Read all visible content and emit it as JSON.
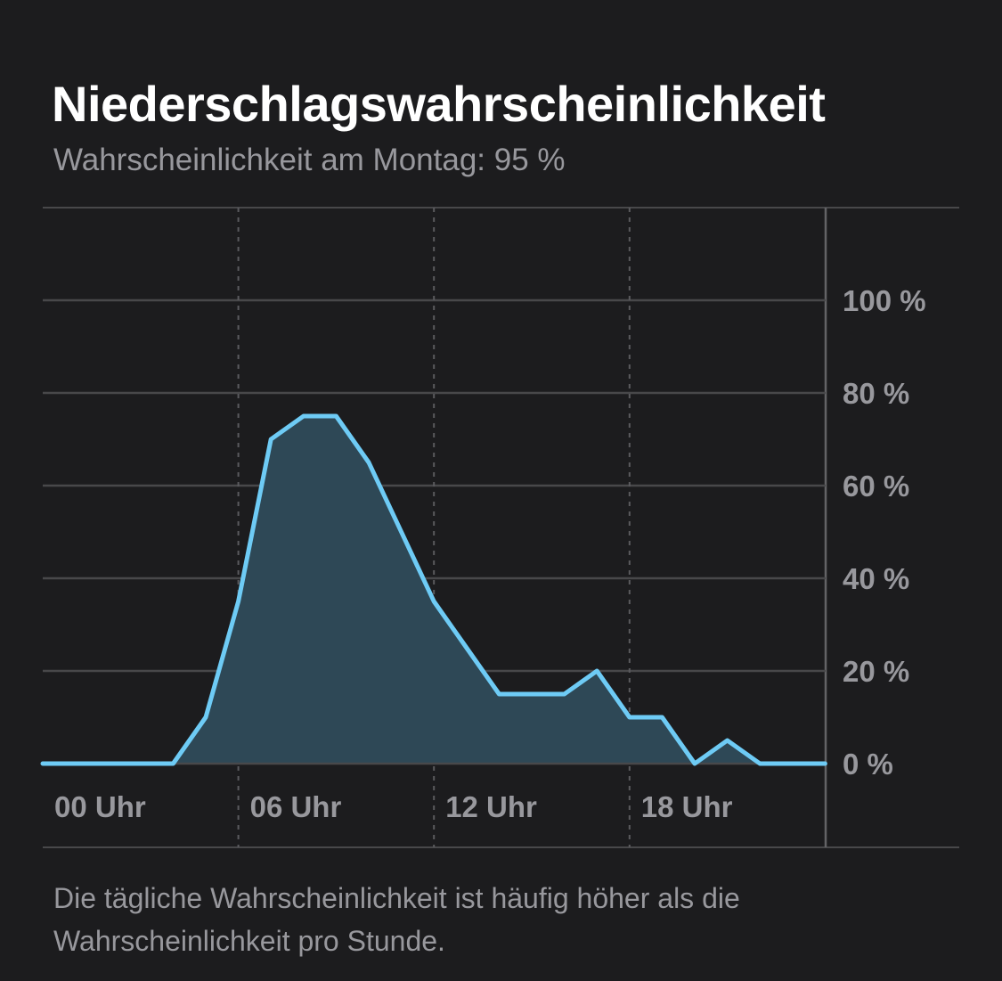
{
  "header": {
    "title": "Niederschlagswahrscheinlichkeit",
    "subtitle": "Wahrscheinlichkeit am Montag: 95 %"
  },
  "footnote": "Die tägliche Wahrscheinlichkeit ist häufig höher als die Wahrscheinlichkeit pro Stunde.",
  "colors": {
    "background": "#1c1c1e",
    "line": "#6ecbf5",
    "area": "#2e4856",
    "grid": "#48484a",
    "text_secondary": "#98989d"
  },
  "chart_data": {
    "type": "area",
    "title": "Niederschlagswahrscheinlichkeit",
    "xlabel": "",
    "ylabel": "",
    "x_ticks": [
      "00 Uhr",
      "06 Uhr",
      "12 Uhr",
      "18 Uhr"
    ],
    "x_tick_hours": [
      0,
      6,
      12,
      18
    ],
    "y_ticks": [
      "0 %",
      "20 %",
      "40 %",
      "60 %",
      "80 %",
      "100 %"
    ],
    "y_tick_values": [
      0,
      20,
      40,
      60,
      80,
      100
    ],
    "xlim": [
      0,
      24
    ],
    "ylim": [
      0,
      100
    ],
    "y_axis_position": "right",
    "grid": true,
    "series": [
      {
        "x": [
          0,
          1,
          2,
          3,
          4,
          5,
          6,
          7,
          8,
          9,
          10,
          11,
          12,
          13,
          14,
          15,
          16,
          17,
          18,
          19,
          20,
          21,
          22,
          23,
          24
        ],
        "values": [
          0,
          0,
          0,
          0,
          0,
          10,
          35,
          70,
          75,
          75,
          65,
          50,
          35,
          25,
          15,
          15,
          15,
          20,
          10,
          10,
          0,
          5,
          0,
          0,
          0
        ]
      }
    ]
  }
}
